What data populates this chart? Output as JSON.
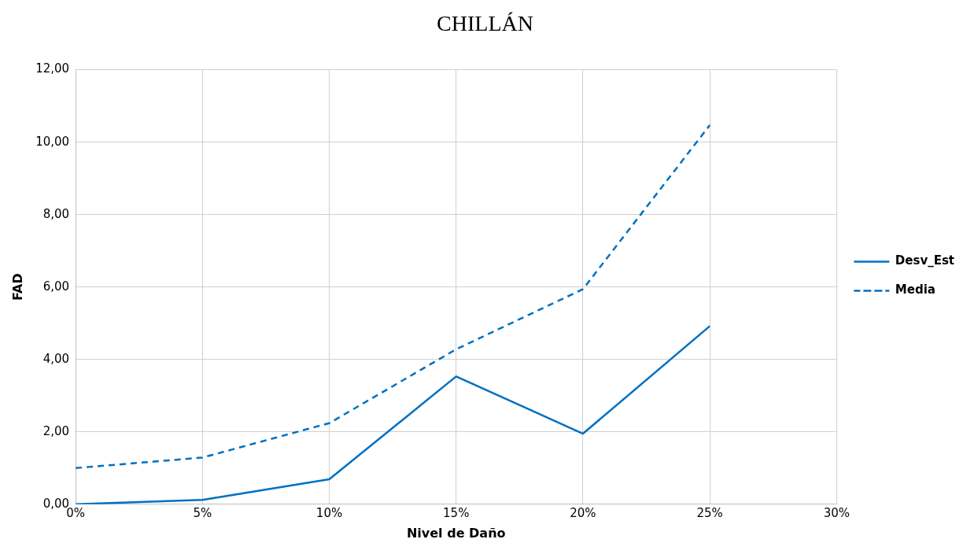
{
  "chart_data": {
    "type": "line",
    "title": "CHILLÁN",
    "xlabel": "Nivel de Daño",
    "ylabel": "FAD",
    "x": [
      0,
      5,
      10,
      15,
      20,
      25
    ],
    "series": [
      {
        "name": "Desv_Est",
        "color": "#0070c0",
        "line_style": "solid",
        "values": [
          0,
          0.12,
          0.69,
          3.53,
          1.95,
          4.92
        ]
      },
      {
        "name": "Media",
        "color": "#0070c0",
        "line_style": "dashed",
        "values": [
          1.0,
          1.29,
          2.24,
          4.28,
          5.94,
          10.47
        ]
      }
    ],
    "xlim": [
      0,
      30
    ],
    "xticks": [
      {
        "value": 0,
        "label": "0%"
      },
      {
        "value": 5,
        "label": "5%"
      },
      {
        "value": 10,
        "label": "10%"
      },
      {
        "value": 15,
        "label": "15%"
      },
      {
        "value": 20,
        "label": "20%"
      },
      {
        "value": 25,
        "label": "25%"
      },
      {
        "value": 30,
        "label": "30%"
      }
    ],
    "ylim": [
      0,
      12
    ],
    "yticks": [
      {
        "value": 0,
        "label": "0,00"
      },
      {
        "value": 2,
        "label": "2,00"
      },
      {
        "value": 4,
        "label": "4,00"
      },
      {
        "value": 6,
        "label": "6,00"
      },
      {
        "value": 8,
        "label": "8,00"
      },
      {
        "value": 10,
        "label": "10,00"
      },
      {
        "value": 12,
        "label": "12,00"
      }
    ],
    "grid": true,
    "legend": "right",
    "marker": "none"
  }
}
